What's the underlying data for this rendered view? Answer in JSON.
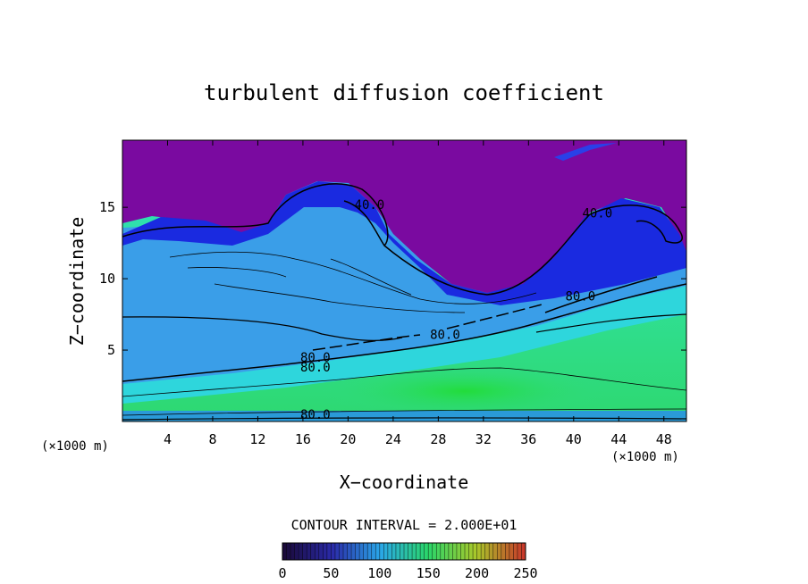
{
  "chart_data": {
    "type": "heatmap",
    "title": "turbulent diffusion coefficient",
    "xlabel": "X−coordinate",
    "ylabel": "Z−coordinate",
    "x_unit_label": "(×1000 m)",
    "y_unit_label": "(×1000 m)",
    "xlim": [
      0,
      50
    ],
    "ylim": [
      0,
      19.7
    ],
    "x_ticks": [
      4,
      8,
      12,
      16,
      20,
      24,
      28,
      32,
      36,
      40,
      44,
      48
    ],
    "y_ticks": [
      5,
      10,
      15
    ],
    "contour_interval_text": "CONTOUR INTERVAL =  2.000E+01",
    "contour_labels": [
      {
        "text": "40.0",
        "x": 21.9,
        "z": 15.2
      },
      {
        "text": "40.0",
        "x": 42.1,
        "z": 14.6
      },
      {
        "text": "80.0",
        "x": 40.6,
        "z": 8.8
      },
      {
        "text": "80.0",
        "x": 28.6,
        "z": 6.1
      },
      {
        "text": "80.0",
        "x": 17.1,
        "z": 4.5
      },
      {
        "text": "80.0",
        "x": 17.1,
        "z": 3.8
      },
      {
        "text": "80.0",
        "x": 17.1,
        "z": 0.5
      }
    ],
    "colorbar": {
      "range": [
        0,
        250
      ],
      "tick_labels": [
        "0",
        "50",
        "100",
        "150",
        "200",
        "250"
      ],
      "colors": [
        "#1a0a3a",
        "#2a2aa8",
        "#2aa6e8",
        "#2ad66a",
        "#a8c82a",
        "#c83a2a"
      ]
    },
    "layers": {
      "top_color": "#7a0aa0",
      "shear_color": "#1a2ae0",
      "mid_color": "#3a9ee8",
      "cyan_color": "#2ed6dc",
      "lower_color": "#3ae0aa",
      "core_color": "#2ad64a"
    }
  }
}
